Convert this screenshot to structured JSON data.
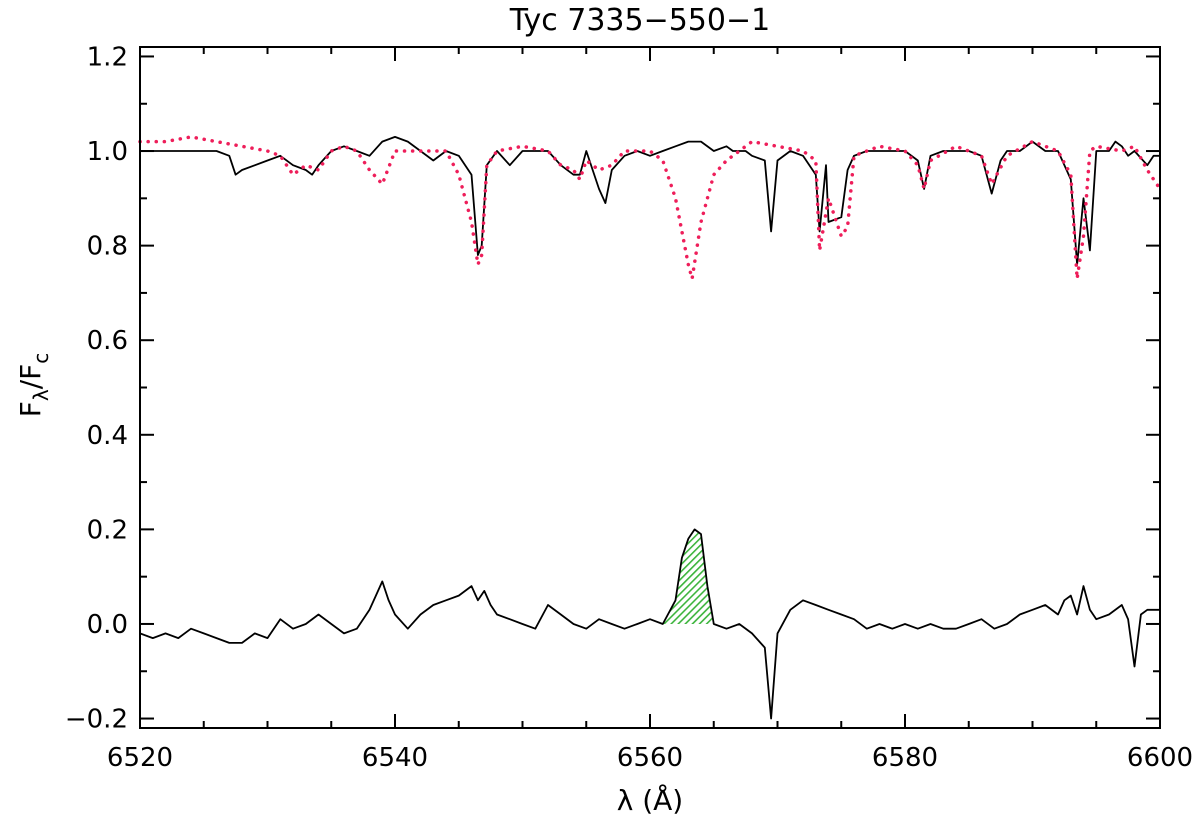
{
  "chart_data": {
    "type": "line",
    "title": "Tyc 7335−550−1",
    "xlabel": "λ (Å)",
    "ylabel": "Fλ/Fc",
    "ylabel_main": "F",
    "ylabel_sub1": "λ",
    "ylabel_slash": "/F",
    "ylabel_sub2": "c",
    "xlim": [
      6520,
      6600
    ],
    "ylim": [
      -0.22,
      1.22
    ],
    "xticks": [
      6520,
      6540,
      6560,
      6580,
      6600
    ],
    "xtick_labels": [
      "6520",
      "6540",
      "6560",
      "6580",
      "6600"
    ],
    "yticks": [
      -0.2,
      0.0,
      0.2,
      0.4,
      0.6,
      0.8,
      1.0,
      1.2
    ],
    "ytick_labels": [
      "−0.2",
      "0.0",
      "0.2",
      "0.4",
      "0.6",
      "0.8",
      "1.0",
      "1.2"
    ],
    "grid": false,
    "shaded_region": {
      "x_range": [
        6561,
        6565
      ],
      "color": "#3cb43c",
      "pattern": "hatched"
    },
    "series": [
      {
        "style": "solid",
        "color": "#000000",
        "x": [
          6520,
          6522,
          6524,
          6526,
          6527,
          6527.5,
          6528,
          6530,
          6531,
          6532,
          6533,
          6533.5,
          6534,
          6535,
          6536,
          6537,
          6538,
          6539,
          6540,
          6541,
          6542,
          6543,
          6544,
          6545,
          6546,
          6546.5,
          6546.8,
          6547.2,
          6548,
          6549,
          6550,
          6552,
          6553,
          6554,
          6554.5,
          6555,
          6556,
          6556.5,
          6557,
          6558,
          6559,
          6560,
          6561,
          6562,
          6563,
          6564,
          6565,
          6566,
          6566.5,
          6567,
          6567.5,
          6568,
          6569,
          6569.5,
          6570,
          6571,
          6572,
          6573,
          6573.3,
          6573.8,
          6574,
          6575,
          6575.5,
          6576,
          6577,
          6578,
          6579,
          6580,
          6581,
          6581.5,
          6582,
          6583,
          6584,
          6585,
          6586,
          6586.8,
          6587.5,
          6588,
          6589,
          6590,
          6591,
          6592,
          6593,
          6593.5,
          6594,
          6594.5,
          6595,
          6596,
          6596.5,
          6597,
          6597.5,
          6598,
          6599,
          6599.5,
          6600
        ],
        "y": [
          1.0,
          1.0,
          1.0,
          1.0,
          0.99,
          0.95,
          0.96,
          0.98,
          0.99,
          0.97,
          0.96,
          0.95,
          0.97,
          1.0,
          1.01,
          1.0,
          0.99,
          1.02,
          1.03,
          1.02,
          1.0,
          0.98,
          1.0,
          0.99,
          0.95,
          0.78,
          0.8,
          0.97,
          1.0,
          0.97,
          1.0,
          1.0,
          0.97,
          0.95,
          0.95,
          1.0,
          0.92,
          0.89,
          0.96,
          0.99,
          1.0,
          0.99,
          1.0,
          1.01,
          1.02,
          1.02,
          1.0,
          1.01,
          1.0,
          1.0,
          1.0,
          0.99,
          0.98,
          0.83,
          0.98,
          1.0,
          0.99,
          0.95,
          0.83,
          0.97,
          0.85,
          0.86,
          0.96,
          0.99,
          1.0,
          1.0,
          1.0,
          1.0,
          0.98,
          0.92,
          0.99,
          1.0,
          1.0,
          1.0,
          0.99,
          0.91,
          0.98,
          1.0,
          1.0,
          1.02,
          1.0,
          1.0,
          0.94,
          0.76,
          0.9,
          0.79,
          1.0,
          1.0,
          1.02,
          1.01,
          0.99,
          1.0,
          0.97,
          0.99,
          0.99
        ]
      },
      {
        "style": "dotted",
        "color": "#ee1e5a",
        "x": [
          6520,
          6522,
          6524,
          6526,
          6528,
          6530,
          6531,
          6532,
          6533,
          6534,
          6535,
          6536,
          6537,
          6538,
          6539,
          6540,
          6542,
          6544,
          6545,
          6546,
          6546.5,
          6546.8,
          6547.2,
          6548,
          6550,
          6552,
          6553,
          6554,
          6554.5,
          6555,
          6556,
          6557,
          6558,
          6559,
          6560,
          6561,
          6562,
          6563,
          6563.3,
          6564,
          6565,
          6566,
          6567,
          6568,
          6570,
          6572,
          6573,
          6573.3,
          6574,
          6575,
          6575.5,
          6576,
          6578,
          6580,
          6581,
          6581.5,
          6582,
          6584,
          6586,
          6586.8,
          6588,
          6590,
          6592,
          6593,
          6593.5,
          6594,
          6594.5,
          6595,
          6597,
          6598,
          6599,
          6600
        ],
        "y": [
          1.02,
          1.02,
          1.03,
          1.02,
          1.01,
          1.0,
          0.99,
          0.95,
          0.97,
          0.96,
          1.0,
          1.01,
          1.0,
          0.96,
          0.93,
          1.0,
          1.0,
          1.0,
          0.95,
          0.85,
          0.76,
          0.78,
          0.97,
          1.0,
          1.01,
          1.0,
          0.97,
          0.96,
          0.94,
          0.98,
          0.96,
          0.97,
          1.0,
          1.0,
          1.0,
          0.98,
          0.9,
          0.76,
          0.73,
          0.85,
          0.95,
          0.98,
          1.0,
          1.02,
          1.01,
          1.0,
          0.98,
          0.79,
          0.9,
          0.82,
          0.84,
          0.99,
          1.01,
          1.0,
          0.97,
          0.92,
          0.98,
          1.01,
          0.99,
          0.93,
          0.99,
          1.02,
          1.0,
          0.95,
          0.73,
          0.82,
          1.0,
          1.01,
          1.0,
          1.01,
          0.96,
          0.92
        ]
      },
      {
        "style": "solid",
        "color": "#000000",
        "x": [
          6520,
          6521,
          6522,
          6523,
          6524,
          6525,
          6526,
          6527,
          6528,
          6529,
          6530,
          6531,
          6532,
          6533,
          6534,
          6535,
          6536,
          6537,
          6538,
          6538.5,
          6539,
          6539.5,
          6540,
          6541,
          6542,
          6543,
          6544,
          6545,
          6546,
          6546.5,
          6547,
          6547.5,
          6548,
          6549,
          6550,
          6551,
          6552,
          6553,
          6554,
          6555,
          6556,
          6557,
          6558,
          6559,
          6560,
          6561,
          6562,
          6562.5,
          6563,
          6563.5,
          6564,
          6564.5,
          6565,
          6566,
          6567,
          6568,
          6569,
          6569.5,
          6570,
          6571,
          6572,
          6573,
          6574,
          6575,
          6576,
          6577,
          6578,
          6579,
          6580,
          6581,
          6582,
          6583,
          6584,
          6585,
          6586,
          6587,
          6588,
          6589,
          6590,
          6591,
          6592,
          6592.5,
          6593,
          6593.5,
          6594,
          6594.5,
          6595,
          6596,
          6597,
          6597.5,
          6598,
          6598.5,
          6599,
          6600
        ],
        "y": [
          -0.02,
          -0.03,
          -0.02,
          -0.03,
          -0.01,
          -0.02,
          -0.03,
          -0.04,
          -0.04,
          -0.02,
          -0.03,
          0.01,
          -0.01,
          0.0,
          0.02,
          0.0,
          -0.02,
          -0.01,
          0.03,
          0.06,
          0.09,
          0.05,
          0.02,
          -0.01,
          0.02,
          0.04,
          0.05,
          0.06,
          0.08,
          0.05,
          0.07,
          0.04,
          0.02,
          0.01,
          0.0,
          -0.01,
          0.04,
          0.02,
          0.0,
          -0.01,
          0.01,
          0.0,
          -0.01,
          0.0,
          0.01,
          0.0,
          0.05,
          0.14,
          0.18,
          0.2,
          0.19,
          0.08,
          0.0,
          -0.01,
          0.0,
          -0.02,
          -0.05,
          -0.2,
          -0.02,
          0.03,
          0.05,
          0.04,
          0.03,
          0.02,
          0.01,
          -0.01,
          0.0,
          -0.01,
          0.0,
          -0.01,
          0.0,
          -0.01,
          -0.01,
          0.0,
          0.01,
          -0.01,
          0.0,
          0.02,
          0.03,
          0.04,
          0.02,
          0.05,
          0.06,
          0.02,
          0.08,
          0.03,
          0.01,
          0.02,
          0.04,
          0.01,
          -0.09,
          0.02,
          0.03,
          0.03
        ]
      }
    ]
  }
}
